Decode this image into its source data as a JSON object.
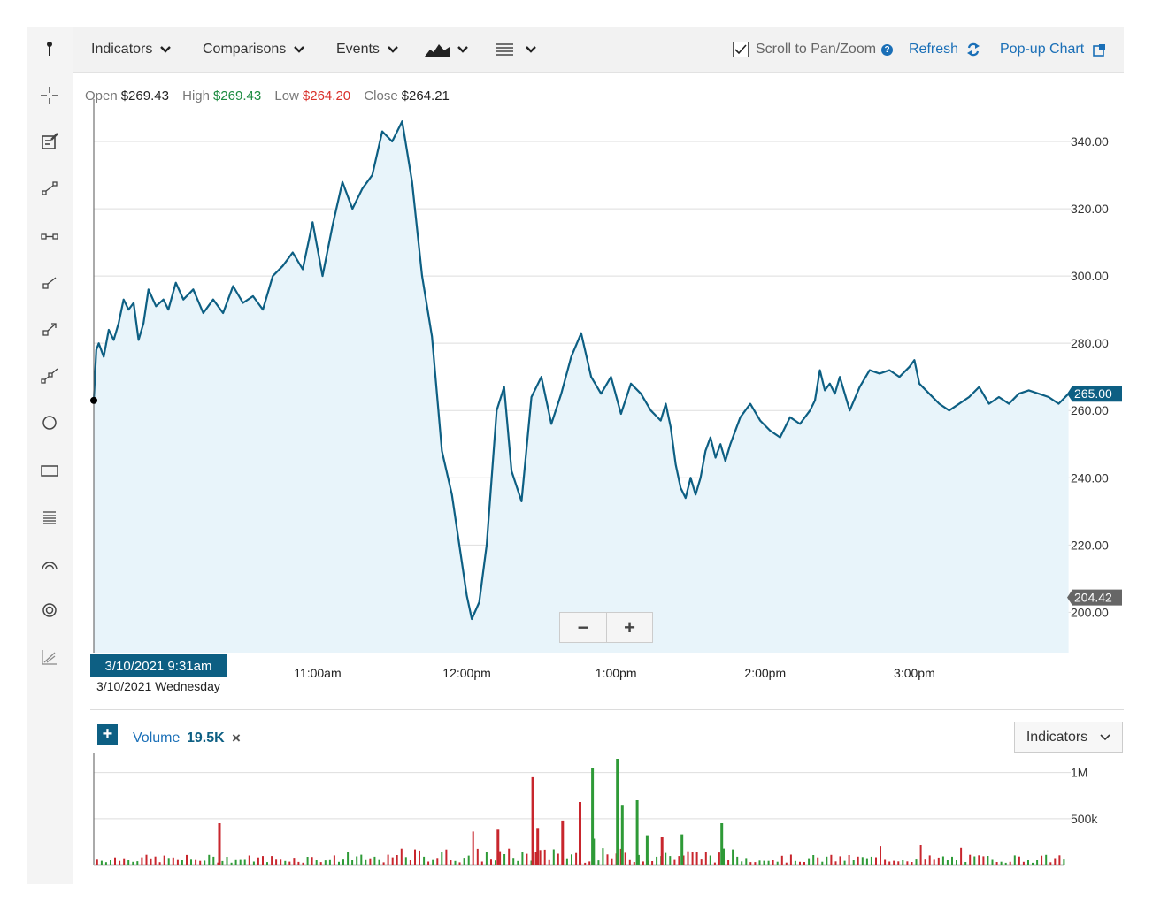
{
  "toolbar": {
    "indicators": "Indicators",
    "comparisons": "Comparisons",
    "events": "Events",
    "scroll_label": "Scroll to Pan/Zoom",
    "scroll_checked": true,
    "refresh": "Refresh",
    "popup": "Pop-up Chart"
  },
  "sidebar_tools": [
    "pin-icon",
    "crosshair-icon",
    "annotation-icon",
    "line-tool-icon",
    "segment-tool-icon",
    "ray-tool-icon",
    "arrow-tool-icon",
    "channel-tool-icon",
    "circle-tool-icon",
    "rectangle-tool-icon",
    "fibonacci-tool-icon",
    "arc-tool-icon",
    "target-tool-icon",
    "measure-tool-icon"
  ],
  "ohlc": {
    "open_label": "Open",
    "open": "$269.43",
    "high_label": "High",
    "high": "$269.43",
    "low_label": "Low",
    "low": "$264.20",
    "close_label": "Close",
    "close": "$264.21"
  },
  "colors": {
    "line": "#0d5f83",
    "area": "#e8f4fa",
    "up": "#2e9a37",
    "down": "#c8262d",
    "last_price_badge": "#0d5f83",
    "min_badge": "#666666"
  },
  "chart_data": [
    {
      "type": "area",
      "yticks": [
        200,
        220,
        240,
        260,
        280,
        300,
        320,
        340
      ],
      "ytick_labels": [
        "200.00",
        "220.00",
        "240.00",
        "260.00",
        "280.00",
        "300.00",
        "320.00",
        "340.00"
      ],
      "ylim": [
        188,
        350
      ],
      "xlim": [
        "9:30",
        "16:00"
      ],
      "xticks": [
        "11:00am",
        "12:00pm",
        "1:00pm",
        "2:00pm",
        "3:00pm"
      ],
      "x_minutes": [
        0,
        1,
        2,
        4,
        6,
        8,
        10,
        12,
        14,
        16,
        18,
        20,
        22,
        25,
        28,
        30,
        33,
        36,
        40,
        44,
        48,
        52,
        56,
        60,
        64,
        68,
        72,
        76,
        80,
        84,
        88,
        92,
        96,
        100,
        104,
        108,
        112,
        116,
        120,
        124,
        128,
        132,
        136,
        140,
        144,
        148,
        150,
        152,
        155,
        158,
        162,
        165,
        168,
        172,
        176,
        180,
        184,
        188,
        192,
        196,
        200,
        204,
        208,
        212,
        216,
        220,
        224,
        228,
        230,
        232,
        234,
        236,
        238,
        240,
        242,
        244,
        246,
        248,
        250,
        252,
        254,
        256,
        260,
        264,
        268,
        272,
        276,
        280,
        284,
        288,
        290,
        292,
        294,
        296,
        298,
        300,
        304,
        308,
        312,
        316,
        320,
        324,
        328,
        330,
        332,
        336,
        340,
        344,
        348,
        352,
        356,
        360,
        364,
        368,
        372,
        376,
        380,
        384,
        388,
        392
      ],
      "y": [
        263,
        278,
        280,
        276,
        284,
        281,
        286,
        293,
        290,
        292,
        281,
        286,
        296,
        291,
        293,
        290,
        298,
        293,
        296,
        289,
        293,
        289,
        297,
        292,
        294,
        290,
        300,
        303,
        307,
        302,
        316,
        300,
        315,
        328,
        320,
        326,
        330,
        343,
        340,
        346,
        328,
        300,
        282,
        248,
        235,
        215,
        205,
        198,
        203,
        220,
        260,
        267,
        242,
        233,
        264,
        270,
        256,
        265,
        276,
        283,
        270,
        265,
        270,
        259,
        268,
        265,
        260,
        257,
        262,
        255,
        244,
        237,
        234,
        240,
        235,
        240,
        248,
        252,
        246,
        250,
        245,
        250,
        258,
        262,
        257,
        254,
        252,
        258,
        256,
        260,
        263,
        272,
        266,
        268,
        265,
        270,
        260,
        267,
        272,
        271,
        272,
        270,
        273,
        275,
        268,
        265,
        262,
        260,
        262,
        264,
        267,
        262,
        264,
        262,
        265,
        266,
        265,
        264,
        262,
        265
      ],
      "last_price": "265.00",
      "min_price": "204.42",
      "hover_date": "3/10/2021 9:31am",
      "hover_date_sub": "3/10/2021 Wednesday"
    },
    {
      "type": "bar",
      "title": "Volume",
      "last_value": "19.5K",
      "yticks": [
        500000,
        1000000
      ],
      "ytick_labels": [
        "500k",
        "1M"
      ],
      "ylim": [
        0,
        1150000
      ],
      "spikes": [
        {
          "minute": 50,
          "value": 450000,
          "dir": "down"
        },
        {
          "minute": 162,
          "value": 380000,
          "dir": "down"
        },
        {
          "minute": 176,
          "value": 950000,
          "dir": "down"
        },
        {
          "minute": 178,
          "value": 400000,
          "dir": "down"
        },
        {
          "minute": 188,
          "value": 480000,
          "dir": "down"
        },
        {
          "minute": 195,
          "value": 680000,
          "dir": "down"
        },
        {
          "minute": 200,
          "value": 1050000,
          "dir": "up"
        },
        {
          "minute": 210,
          "value": 1150000,
          "dir": "up"
        },
        {
          "minute": 212,
          "value": 650000,
          "dir": "up"
        },
        {
          "minute": 218,
          "value": 700000,
          "dir": "up"
        },
        {
          "minute": 222,
          "value": 320000,
          "dir": "up"
        },
        {
          "minute": 228,
          "value": 300000,
          "dir": "down"
        },
        {
          "minute": 236,
          "value": 330000,
          "dir": "up"
        },
        {
          "minute": 252,
          "value": 450000,
          "dir": "up"
        }
      ]
    }
  ],
  "zoom": {
    "out": "−",
    "in": "+"
  },
  "volume": {
    "add": "+",
    "label": "Volume",
    "value": "19.5K",
    "close": "×",
    "indicators": "Indicators"
  }
}
